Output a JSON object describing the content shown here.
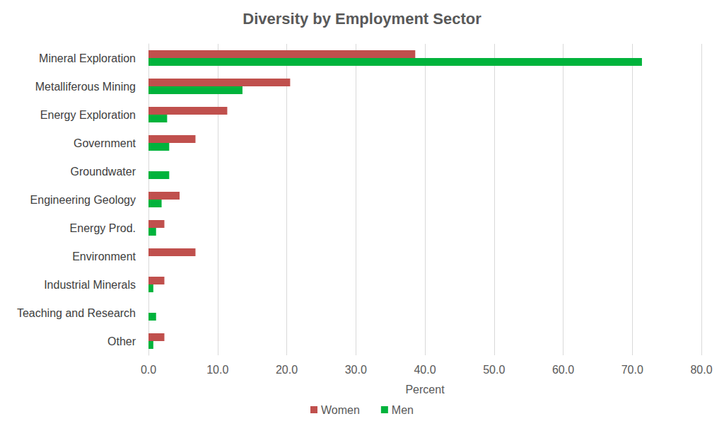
{
  "chart_data": {
    "type": "bar",
    "orientation": "horizontal",
    "title": "Diversity by Employment Sector",
    "x_label": "Percent",
    "categories": [
      "Mineral Exploration",
      "Metalliferous Mining",
      "Energy Exploration",
      "Government",
      "Groundwater",
      "Engineering Geology",
      "Energy Prod.",
      "Environment",
      "Industrial Minerals",
      "Teaching and Research",
      "Other"
    ],
    "series": [
      {
        "name": "Women",
        "color": "#c0504d",
        "values": [
          38.6,
          20.5,
          11.4,
          6.8,
          0,
          4.5,
          2.3,
          6.8,
          2.3,
          0,
          2.3
        ]
      },
      {
        "name": "Men",
        "color": "#00b33c",
        "values": [
          71.4,
          13.6,
          2.7,
          3.0,
          3.0,
          1.9,
          1.1,
          0,
          0.7,
          1.1,
          0.7
        ]
      }
    ],
    "xlim": [
      0,
      80
    ],
    "xticks": [
      {
        "value": 0,
        "label": "0.0"
      },
      {
        "value": 10,
        "label": "10.0"
      },
      {
        "value": 20,
        "label": "20.0"
      },
      {
        "value": 30,
        "label": "30.0"
      },
      {
        "value": 40,
        "label": "40.0"
      },
      {
        "value": 50,
        "label": "50.0"
      },
      {
        "value": 60,
        "label": "60.0"
      },
      {
        "value": 70,
        "label": "70.0"
      },
      {
        "value": 80,
        "label": "80.0"
      }
    ],
    "grid": true,
    "legend": "bottom"
  }
}
